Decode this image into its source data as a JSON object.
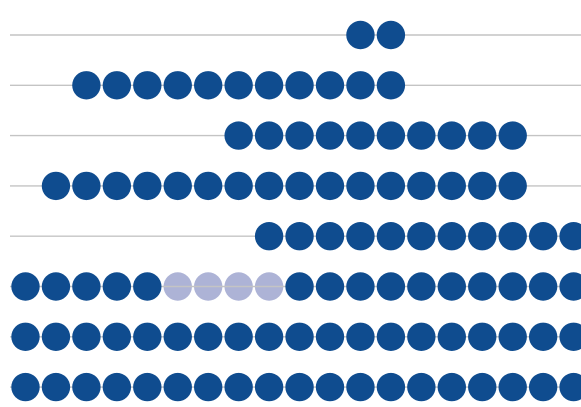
{
  "colors": {
    "dot_primary": "#0f4c8f",
    "dot_faded": "#adb3d6",
    "guide_line": "#c4c4c4",
    "background": "#ffffff"
  },
  "chart_data": {
    "type": "dot-matrix",
    "grid": false,
    "legend": "none",
    "columns": 19,
    "rows": [
      {
        "start_col": 11,
        "end_col": 12,
        "faded_cols": []
      },
      {
        "start_col": 2,
        "end_col": 12,
        "faded_cols": []
      },
      {
        "start_col": 7,
        "end_col": 16,
        "faded_cols": []
      },
      {
        "start_col": 1,
        "end_col": 16,
        "faded_cols": []
      },
      {
        "start_col": 8,
        "end_col": 18,
        "faded_cols": []
      },
      {
        "start_col": 0,
        "end_col": 18,
        "faded_cols": [
          5,
          6,
          7,
          8
        ]
      },
      {
        "start_col": 0,
        "end_col": 18,
        "faded_cols": []
      },
      {
        "start_col": 0,
        "end_col": 18,
        "faded_cols": []
      }
    ]
  }
}
